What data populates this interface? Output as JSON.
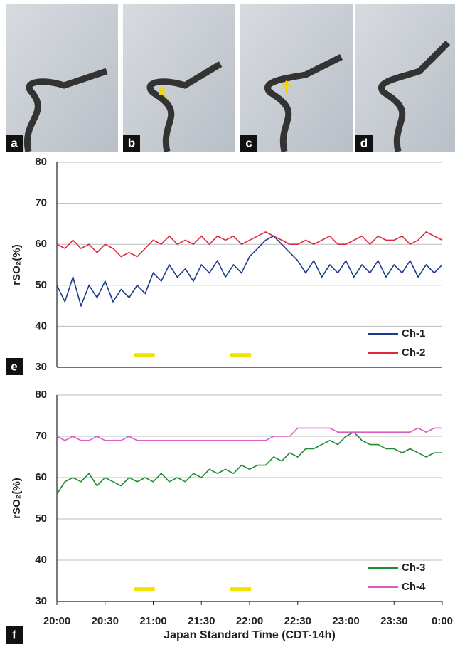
{
  "panels": {
    "labels": [
      "a",
      "b",
      "c",
      "d",
      "e",
      "f"
    ]
  },
  "chart_data": [
    {
      "type": "line",
      "ylabel": "rSO₂(%)",
      "x": [
        0,
        5,
        10,
        15,
        20,
        25,
        30,
        35,
        40,
        45,
        50,
        55,
        60,
        65,
        70,
        75,
        80,
        85,
        90,
        95,
        100,
        105,
        110,
        115,
        120,
        125,
        130,
        135,
        140,
        145,
        150,
        155,
        160,
        165,
        170,
        175,
        180,
        185,
        190,
        195,
        200,
        205,
        210,
        215,
        220,
        225,
        230,
        235,
        240
      ],
      "xlim": [
        0,
        240
      ],
      "ylim": [
        30,
        80
      ],
      "yticks": [
        30,
        40,
        50,
        60,
        70,
        80
      ],
      "grid": true,
      "legend": "lower right",
      "spans": [
        [
          48,
          61
        ],
        [
          108,
          121
        ]
      ],
      "span_y": 33,
      "span_color": "#f2e200",
      "series": [
        {
          "name": "Ch-1",
          "color": "#1b3a8f",
          "values": [
            50,
            46,
            52,
            45,
            50,
            47,
            51,
            46,
            49,
            47,
            50,
            48,
            53,
            51,
            55,
            52,
            54,
            51,
            55,
            53,
            56,
            52,
            55,
            53,
            57,
            59,
            61,
            62,
            60,
            58,
            56,
            53,
            56,
            52,
            55,
            53,
            56,
            52,
            55,
            53,
            56,
            52,
            55,
            53,
            56,
            52,
            55,
            53,
            55
          ]
        },
        {
          "name": "Ch-2",
          "color": "#e0283c",
          "values": [
            60,
            59,
            61,
            59,
            60,
            58,
            60,
            59,
            57,
            58,
            57,
            59,
            61,
            60,
            62,
            60,
            61,
            60,
            62,
            60,
            62,
            61,
            62,
            60,
            61,
            62,
            63,
            62,
            61,
            60,
            60,
            61,
            60,
            61,
            62,
            60,
            60,
            61,
            62,
            60,
            62,
            61,
            61,
            62,
            60,
            61,
            63,
            62,
            61
          ]
        }
      ]
    },
    {
      "type": "line",
      "ylabel": "rSO₂(%)",
      "xlabel": "Japan Standard Time (CDT-14h)",
      "x": [
        0,
        5,
        10,
        15,
        20,
        25,
        30,
        35,
        40,
        45,
        50,
        55,
        60,
        65,
        70,
        75,
        80,
        85,
        90,
        95,
        100,
        105,
        110,
        115,
        120,
        125,
        130,
        135,
        140,
        145,
        150,
        155,
        160,
        165,
        170,
        175,
        180,
        185,
        190,
        195,
        200,
        205,
        210,
        215,
        220,
        225,
        230,
        235,
        240
      ],
      "xlim": [
        0,
        240
      ],
      "ylim": [
        30,
        80
      ],
      "yticks": [
        30,
        40,
        50,
        60,
        70,
        80
      ],
      "grid": true,
      "xticks": [
        {
          "value": 0,
          "label": "20:00"
        },
        {
          "value": 30,
          "label": "20:30"
        },
        {
          "value": 60,
          "label": "21:00"
        },
        {
          "value": 90,
          "label": "21:30"
        },
        {
          "value": 120,
          "label": "22:00"
        },
        {
          "value": 150,
          "label": "22:30"
        },
        {
          "value": 180,
          "label": "23:00"
        },
        {
          "value": 210,
          "label": "23:30"
        },
        {
          "value": 240,
          "label": "0:00"
        }
      ],
      "legend": "lower right",
      "spans": [
        [
          48,
          61
        ],
        [
          108,
          121
        ]
      ],
      "span_y": 33,
      "span_color": "#f2e200",
      "series": [
        {
          "name": "Ch-3",
          "color": "#1f8a2e",
          "values": [
            56,
            59,
            60,
            59,
            61,
            58,
            60,
            59,
            58,
            60,
            59,
            60,
            59,
            61,
            59,
            60,
            59,
            61,
            60,
            62,
            61,
            62,
            61,
            63,
            62,
            63,
            63,
            65,
            64,
            66,
            65,
            67,
            67,
            68,
            69,
            68,
            70,
            71,
            69,
            68,
            68,
            67,
            67,
            66,
            67,
            66,
            65,
            66,
            66
          ]
        },
        {
          "name": "Ch-4",
          "color": "#d95cc4",
          "values": [
            70,
            69,
            70,
            69,
            69,
            70,
            69,
            69,
            69,
            70,
            69,
            69,
            69,
            69,
            69,
            69,
            69,
            69,
            69,
            69,
            69,
            69,
            69,
            69,
            69,
            69,
            69,
            70,
            70,
            70,
            72,
            72,
            72,
            72,
            72,
            71,
            71,
            71,
            71,
            71,
            71,
            71,
            71,
            71,
            71,
            72,
            71,
            72,
            72
          ]
        }
      ]
    }
  ]
}
